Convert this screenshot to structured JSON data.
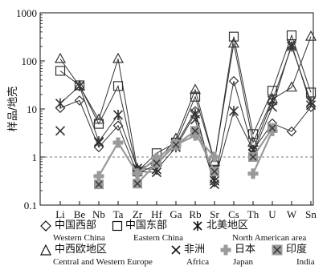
{
  "chart_data": {
    "type": "line",
    "ylabel": "样品/地壳",
    "yscale": "log",
    "ylim": [
      0.1,
      1000
    ],
    "yticks": [
      "0.1",
      "1",
      "10",
      "100",
      "1000"
    ],
    "categories": [
      "Li",
      "Be",
      "Nb",
      "Ta",
      "Zr",
      "Hf",
      "Ga",
      "Rb",
      "Sr",
      "Cs",
      "Th",
      "U",
      "W",
      "Sn"
    ],
    "reference_line": 1,
    "series": [
      {
        "name": "中国西部",
        "name_en": "Western China",
        "marker": "diamond",
        "color": "#333333",
        "values": [
          10.5,
          15,
          1.6,
          4.5,
          0.45,
          0.7,
          1.8,
          9,
          0.3,
          38,
          1.4,
          5,
          3.4,
          11
        ]
      },
      {
        "name": "中国东部",
        "name_en": "Eastern China",
        "marker": "square",
        "color": "#333333",
        "values": [
          62,
          31,
          4.9,
          30,
          0.5,
          1.2,
          2,
          18,
          0.8,
          320,
          3,
          24,
          340,
          22
        ]
      },
      {
        "name": "北美地区",
        "name_en": "North American area",
        "marker": "asterisk",
        "color": "#333333",
        "values": [
          13,
          30,
          2.1,
          7.5,
          0.58,
          0.55,
          1.6,
          8,
          0.32,
          9,
          1.4,
          15,
          200,
          14
        ]
      },
      {
        "name": "中西欧地区",
        "name_en": "Central and Western Europe",
        "marker": "triangle",
        "color": "#333333",
        "values": [
          110,
          30,
          6,
          110,
          0.55,
          0.8,
          2.4,
          25,
          0.8,
          230,
          2,
          16,
          28,
          320
        ]
      },
      {
        "name": "非洲",
        "name_en": "Africa",
        "marker": "x",
        "color": "#333333",
        "values": [
          3.5,
          null,
          2,
          null,
          0.5,
          0.48,
          null,
          6,
          0.27,
          null,
          1.2,
          11,
          220,
          12
        ]
      },
      {
        "name": "日本",
        "name_en": "Japan",
        "marker": "plus",
        "color": "#9a9a9a",
        "values": [
          null,
          null,
          0.4,
          2,
          0.45,
          0.95,
          1.8,
          2.8,
          1,
          null,
          0.45,
          3.5,
          null,
          null
        ]
      },
      {
        "name": "印度",
        "name_en": "India",
        "marker": "boxx",
        "color": "#9a9a9a",
        "values": [
          null,
          null,
          0.27,
          null,
          0.28,
          0.75,
          1.8,
          3.5,
          0.5,
          null,
          1,
          4,
          null,
          null
        ]
      }
    ]
  },
  "legend": {
    "items": [
      {
        "zh": "中国西部",
        "en": "Western China"
      },
      {
        "zh": "中国东部",
        "en": "Eastern China"
      },
      {
        "zh": "北美地区",
        "en": "North American area"
      },
      {
        "zh": "中西欧地区",
        "en": "Central and Western Europe"
      },
      {
        "zh": "非洲",
        "en": "Africa"
      },
      {
        "zh": "日本",
        "en": "Japan"
      },
      {
        "zh": "印度",
        "en": "India"
      }
    ]
  }
}
